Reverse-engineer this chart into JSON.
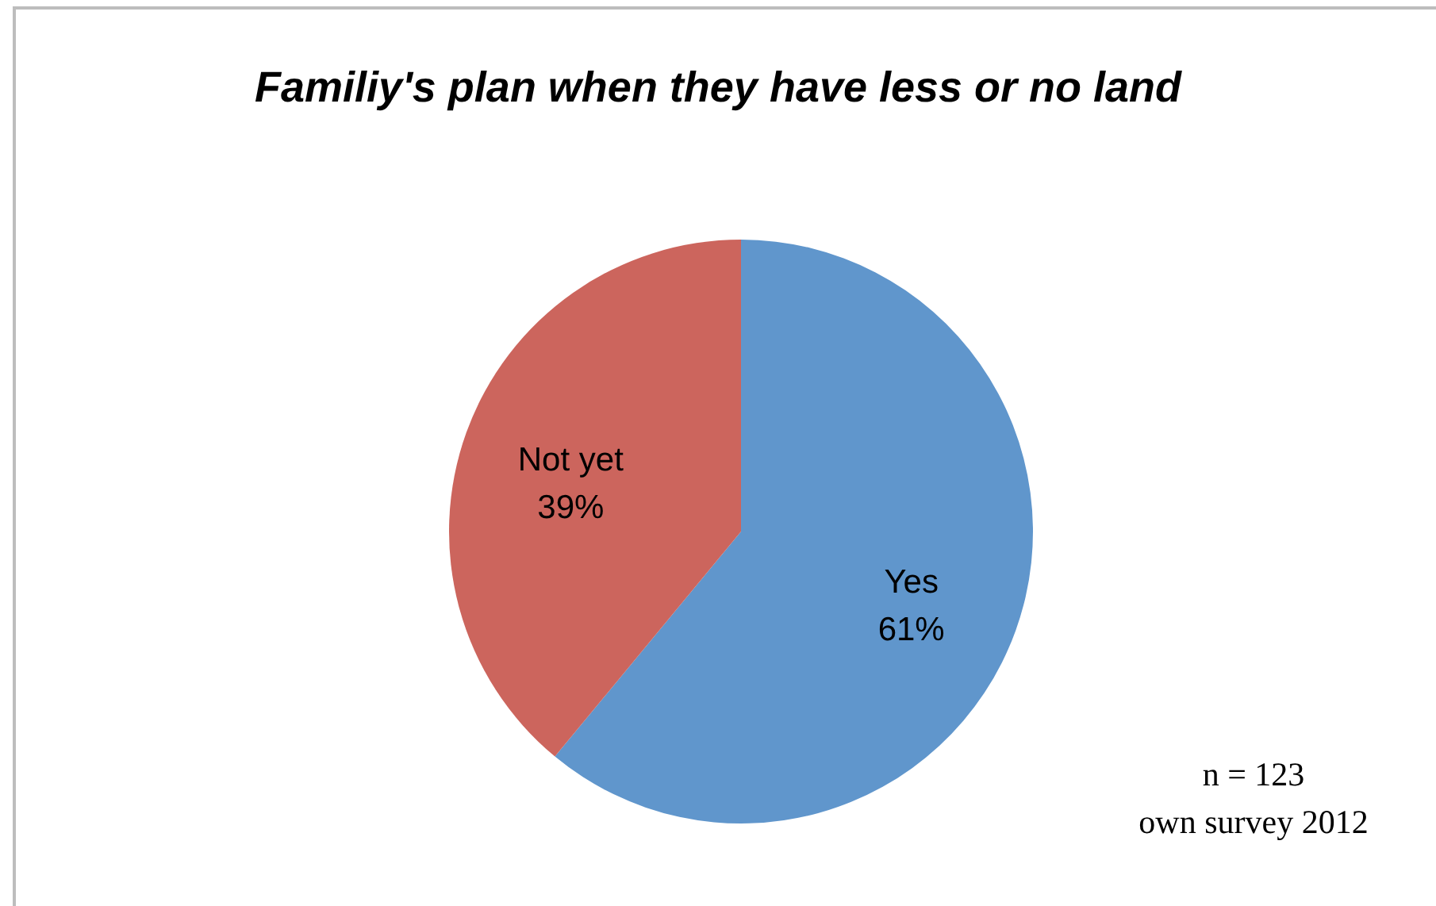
{
  "chart_data": {
    "type": "pie",
    "title": "Familiy's plan when they have less or no land",
    "categories": [
      "Yes",
      "Not yet"
    ],
    "values": [
      61,
      39
    ],
    "value_labels": [
      "61%",
      "39%"
    ],
    "colors": [
      "#6096cc",
      "#cc655d"
    ],
    "annotations": [
      "n = 123",
      "own survey 2012"
    ]
  }
}
